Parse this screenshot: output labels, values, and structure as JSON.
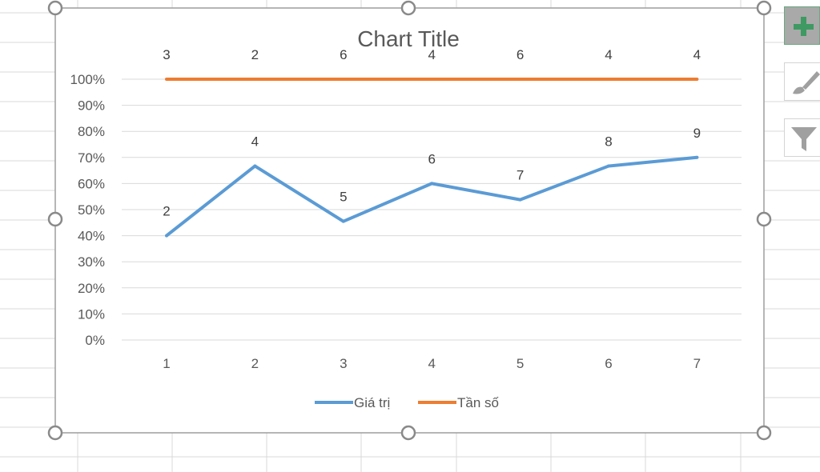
{
  "chart_data": {
    "type": "line",
    "title": "Chart Title",
    "categories": [
      "1",
      "2",
      "3",
      "4",
      "5",
      "6",
      "7"
    ],
    "ylim": [
      0,
      100
    ],
    "y_ticks": [
      "0%",
      "10%",
      "20%",
      "30%",
      "40%",
      "50%",
      "60%",
      "70%",
      "80%",
      "90%",
      "100%"
    ],
    "grid": true,
    "legend_position": "bottom",
    "series": [
      {
        "name": "Giá trị",
        "color": "#5b9bd5",
        "values": [
          40,
          66.7,
          45.5,
          60,
          53.8,
          66.7,
          70
        ],
        "data_labels": [
          "2",
          "4",
          "5",
          "6",
          "7",
          "8",
          "9"
        ]
      },
      {
        "name": "Tần số",
        "color": "#ed7d31",
        "values": [
          100,
          100,
          100,
          100,
          100,
          100,
          100
        ],
        "data_labels": [
          "3",
          "2",
          "6",
          "4",
          "6",
          "4",
          "4"
        ]
      }
    ]
  },
  "side_buttons": [
    "chart-elements-plus-icon",
    "chart-styles-brush-icon",
    "chart-filters-funnel-icon"
  ]
}
